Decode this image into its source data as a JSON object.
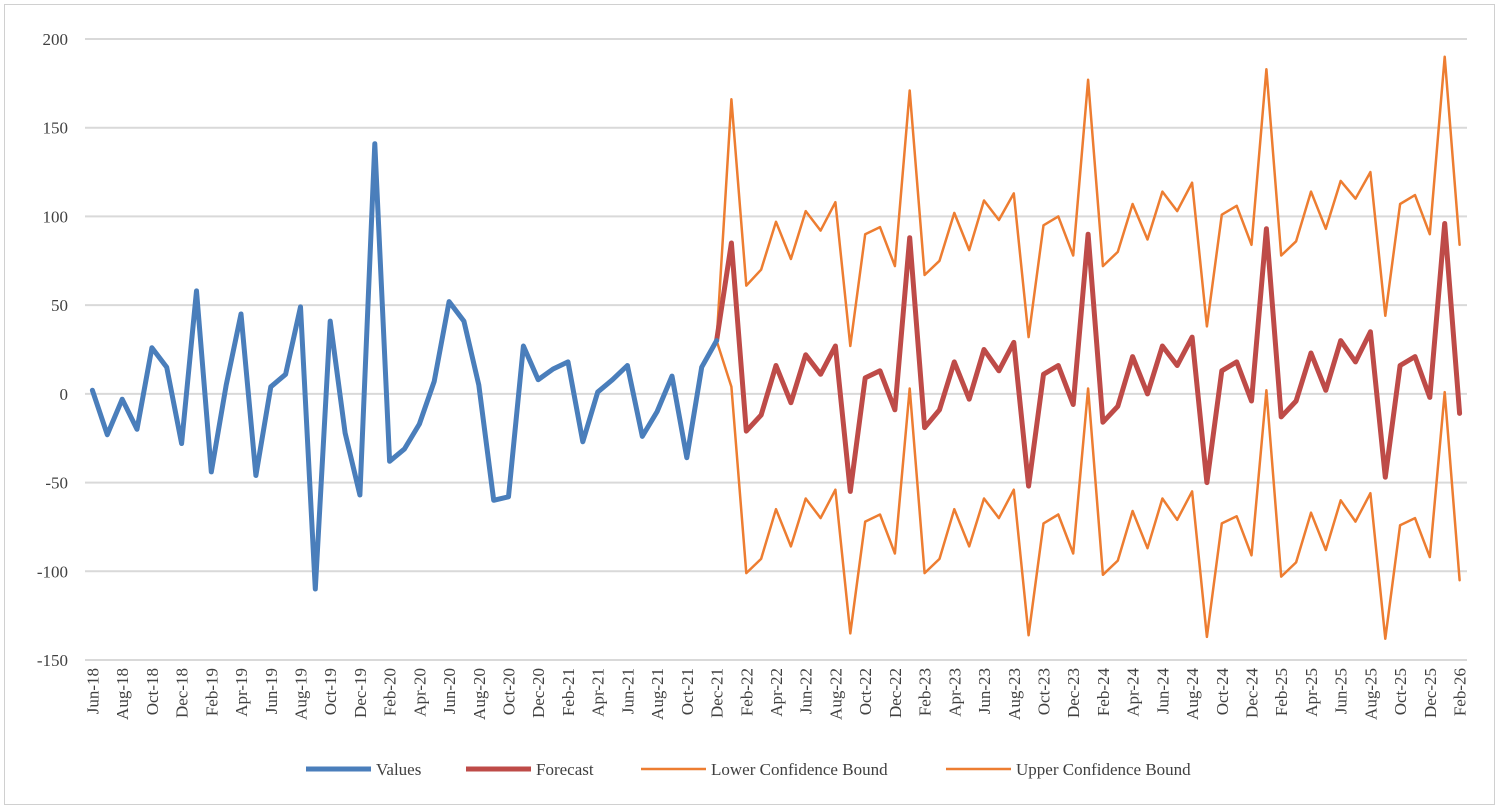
{
  "chart_data": {
    "type": "line",
    "title": "",
    "xlabel": "",
    "ylabel": "",
    "ylim": [
      -150,
      200
    ],
    "y_ticks": [
      "200",
      "150",
      "100",
      "50",
      "0",
      "-50",
      "-100",
      "-150"
    ],
    "y_tick_values": [
      200,
      150,
      100,
      50,
      0,
      -50,
      -100,
      -150
    ],
    "grid": true,
    "legend_position": "bottom",
    "x_start": "Jun-18",
    "x_labels": [
      "Jun-18",
      "Aug-18",
      "Oct-18",
      "Dec-18",
      "Feb-19",
      "Apr-19",
      "Jun-19",
      "Aug-19",
      "Oct-19",
      "Dec-19",
      "Feb-20",
      "Apr-20",
      "Jun-20",
      "Aug-20",
      "Oct-20",
      "Dec-20",
      "Feb-21",
      "Apr-21",
      "Jun-21",
      "Aug-21",
      "Oct-21",
      "Dec-21",
      "Feb-22",
      "Apr-22",
      "Jun-22",
      "Aug-22",
      "Oct-22",
      "Dec-22",
      "Feb-23",
      "Apr-23",
      "Jun-23",
      "Aug-23",
      "Oct-23",
      "Dec-23",
      "Feb-24",
      "Apr-24",
      "Jun-24",
      "Aug-24",
      "Oct-24",
      "Dec-24",
      "Feb-25",
      "Apr-25",
      "Jun-25",
      "Aug-25",
      "Oct-25",
      "Dec-25",
      "Feb-26"
    ],
    "series": [
      {
        "name": "Values",
        "color": "#4a7ebb",
        "width": 5,
        "start_index": 0,
        "values": [
          2,
          -23,
          -3,
          -20,
          26,
          15,
          -28,
          58,
          -44,
          5,
          45,
          -46,
          4,
          11,
          49,
          -110,
          41,
          -22,
          -57,
          141,
          -38,
          -31,
          -17,
          7,
          52,
          41,
          5,
          -60,
          -58,
          27,
          8,
          14,
          18,
          -27,
          1,
          8,
          16,
          -24,
          -10,
          10,
          -36,
          15,
          30
        ]
      },
      {
        "name": "Forecast",
        "color": "#be4b48",
        "width": 5,
        "start_index": 42,
        "values": [
          30,
          85,
          -21,
          -12,
          16,
          -5,
          22,
          11,
          27,
          -55,
          9,
          13,
          -9,
          88,
          -19,
          -9,
          18,
          -3,
          25,
          13,
          29,
          -52,
          11,
          16,
          -6,
          90,
          -16,
          -7,
          21,
          0,
          27,
          16,
          32,
          -50,
          13,
          18,
          -4,
          93,
          -13,
          -4,
          23,
          2,
          30,
          18,
          35,
          -47,
          16,
          21,
          -2,
          96,
          -11
        ]
      },
      {
        "name": "Lower Confidence Bound",
        "color": "#ed7d31",
        "width": 2.5,
        "start_index": 42,
        "values": [
          30,
          4,
          -101,
          -93,
          -65,
          -86,
          -59,
          -70,
          -54,
          -135,
          -72,
          -68,
          -90,
          3,
          -101,
          -93,
          -65,
          -86,
          -59,
          -70,
          -54,
          -136,
          -73,
          -68,
          -90,
          3,
          -102,
          -94,
          -66,
          -87,
          -59,
          -71,
          -55,
          -137,
          -73,
          -69,
          -91,
          2,
          -103,
          -95,
          -67,
          -88,
          -60,
          -72,
          -56,
          -138,
          -74,
          -70,
          -92,
          1,
          -105
        ]
      },
      {
        "name": "Upper Confidence Bound",
        "color": "#ed7d31",
        "width": 2.5,
        "start_index": 42,
        "values": [
          30,
          166,
          61,
          70,
          97,
          76,
          103,
          92,
          108,
          27,
          90,
          94,
          72,
          171,
          67,
          75,
          102,
          81,
          109,
          98,
          113,
          32,
          95,
          100,
          78,
          177,
          72,
          80,
          107,
          87,
          114,
          103,
          119,
          38,
          101,
          106,
          84,
          183,
          78,
          86,
          114,
          93,
          120,
          110,
          125,
          44,
          107,
          112,
          90,
          190,
          84
        ]
      }
    ]
  }
}
